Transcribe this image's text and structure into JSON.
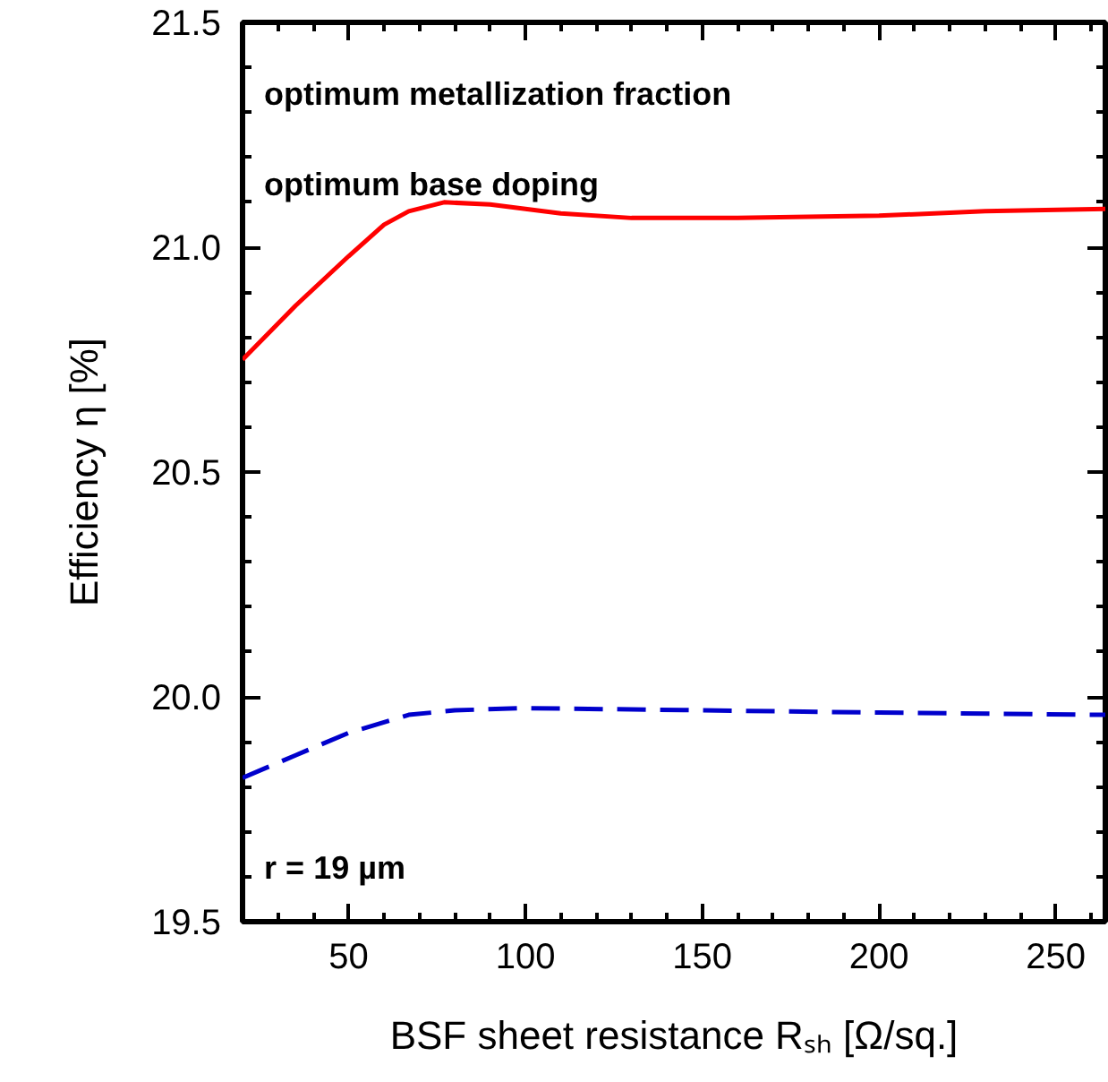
{
  "chart_data": {
    "type": "line",
    "xlabel": "BSF sheet resistance Rₛₕ [Ω/sq.]",
    "ylabel": "Efficiency η [%]",
    "xlim": [
      20,
      264
    ],
    "ylim": [
      19.5,
      21.5
    ],
    "xticks": [
      50,
      100,
      150,
      200,
      250
    ],
    "yticks": [
      {
        "value": 19.5,
        "label": "19.5"
      },
      {
        "value": 20.0,
        "label": "20.0"
      },
      {
        "value": 20.5,
        "label": "20.5"
      },
      {
        "value": 21.0,
        "label": "21.0"
      },
      {
        "value": 21.5,
        "label": "21.5"
      }
    ],
    "grid": false,
    "annotations": [
      "optimum metallization fraction",
      "optimum base doping",
      "r = 19 µm"
    ],
    "series": [
      {
        "color": "#ff0000",
        "line_style": "solid",
        "x": [
          20,
          35,
          50,
          60,
          67,
          77,
          90,
          110,
          130,
          160,
          200,
          230,
          264
        ],
        "values": [
          20.75,
          20.87,
          20.98,
          21.05,
          21.08,
          21.1,
          21.095,
          21.075,
          21.065,
          21.065,
          21.07,
          21.08,
          21.085
        ]
      },
      {
        "color": "#0000cc",
        "line_style": "dashed",
        "x": [
          20,
          35,
          50,
          67,
          80,
          100,
          150,
          200,
          264
        ],
        "values": [
          19.82,
          19.87,
          19.92,
          19.96,
          19.97,
          19.975,
          19.97,
          19.965,
          19.96
        ]
      }
    ]
  }
}
